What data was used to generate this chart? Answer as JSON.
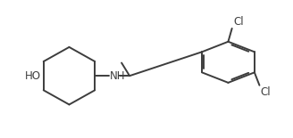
{
  "background_color": "#ffffff",
  "line_color": "#3d3d3d",
  "line_width": 1.4,
  "text_color": "#3d3d3d",
  "font_size": 8.5,
  "figsize": [
    3.28,
    1.55
  ],
  "dpi": 100,
  "xlim": [
    0,
    10
  ],
  "ylim": [
    0,
    5
  ]
}
